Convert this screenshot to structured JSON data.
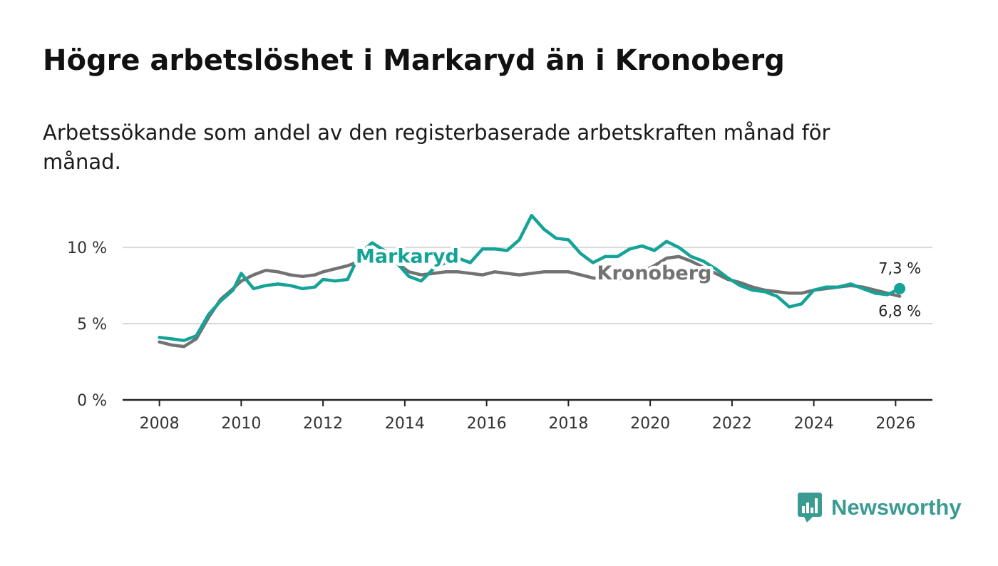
{
  "title": "Högre arbetslöshet i Markaryd än i Kronoberg",
  "subtitle": "Arbetssökande som andel av den registerbaserade arbetskraften månad för månad.",
  "brand": "Newsworthy",
  "colors": {
    "markaryd": "#14a396",
    "kronoberg": "#727272",
    "brand": "#3a9b93"
  },
  "chart_data": {
    "type": "line",
    "title": "Högre arbetslöshet i Markaryd än i Kronoberg",
    "xlabel": "",
    "ylabel": "",
    "xlim": [
      2007.1,
      2026.9
    ],
    "ylim": [
      0,
      10.8
    ],
    "xticks": [
      2008,
      2010,
      2012,
      2014,
      2016,
      2018,
      2020,
      2022,
      2024,
      2026
    ],
    "xtick_labels": [
      "2008",
      "2010",
      "2012",
      "2014",
      "2016",
      "2018",
      "2020",
      "2022",
      "2024",
      "2026"
    ],
    "yticks": [
      0,
      5,
      10
    ],
    "ytick_labels": [
      "0 %",
      "5 %",
      "10 %"
    ],
    "grid": true,
    "series": [
      {
        "name": "Kronoberg",
        "label": "Kronoberg",
        "end_label": "6,8 %",
        "x": [
          2008.0,
          2008.3,
          2008.6,
          2008.9,
          2009.2,
          2009.5,
          2009.8,
          2010.0,
          2010.3,
          2010.6,
          2010.9,
          2011.2,
          2011.5,
          2011.8,
          2012.0,
          2012.3,
          2012.6,
          2012.9,
          2013.2,
          2013.5,
          2013.8,
          2014.1,
          2014.4,
          2014.7,
          2015.0,
          2015.3,
          2015.6,
          2015.9,
          2016.2,
          2016.5,
          2016.8,
          2017.1,
          2017.4,
          2017.7,
          2018.0,
          2018.3,
          2018.6,
          2018.9,
          2019.2,
          2019.5,
          2019.8,
          2020.1,
          2020.4,
          2020.7,
          2021.0,
          2021.3,
          2021.6,
          2021.9,
          2022.2,
          2022.5,
          2022.8,
          2023.1,
          2023.4,
          2023.7,
          2024.0,
          2024.3,
          2024.6,
          2024.9,
          2025.2,
          2025.5,
          2025.8,
          2026.1
        ],
        "y": [
          3.8,
          3.6,
          3.5,
          4.0,
          5.4,
          6.6,
          7.3,
          7.8,
          8.2,
          8.5,
          8.4,
          8.2,
          8.1,
          8.2,
          8.4,
          8.6,
          8.8,
          9.1,
          9.4,
          9.3,
          9.0,
          8.4,
          8.2,
          8.3,
          8.4,
          8.4,
          8.3,
          8.2,
          8.4,
          8.3,
          8.2,
          8.3,
          8.4,
          8.4,
          8.4,
          8.2,
          8.0,
          7.9,
          7.9,
          8.1,
          8.4,
          8.8,
          9.3,
          9.4,
          9.1,
          8.7,
          8.3,
          7.9,
          7.7,
          7.4,
          7.2,
          7.1,
          7.0,
          7.0,
          7.2,
          7.3,
          7.4,
          7.5,
          7.4,
          7.2,
          7.0,
          6.8
        ]
      },
      {
        "name": "Markaryd",
        "label": "Markaryd",
        "end_label": "7,3 %",
        "x": [
          2008.0,
          2008.3,
          2008.6,
          2008.9,
          2009.2,
          2009.5,
          2009.8,
          2010.0,
          2010.3,
          2010.6,
          2010.9,
          2011.2,
          2011.5,
          2011.8,
          2012.0,
          2012.3,
          2012.6,
          2012.9,
          2013.2,
          2013.5,
          2013.8,
          2014.1,
          2014.4,
          2014.7,
          2015.0,
          2015.3,
          2015.6,
          2015.9,
          2016.2,
          2016.5,
          2016.8,
          2017.1,
          2017.4,
          2017.7,
          2018.0,
          2018.3,
          2018.6,
          2018.9,
          2019.2,
          2019.5,
          2019.8,
          2020.1,
          2020.4,
          2020.7,
          2021.0,
          2021.3,
          2021.6,
          2021.9,
          2022.2,
          2022.5,
          2022.8,
          2023.1,
          2023.4,
          2023.7,
          2024.0,
          2024.3,
          2024.6,
          2024.9,
          2025.2,
          2025.5,
          2025.8,
          2026.1
        ],
        "y": [
          4.1,
          4.0,
          3.9,
          4.2,
          5.6,
          6.5,
          7.2,
          8.3,
          7.3,
          7.5,
          7.6,
          7.5,
          7.3,
          7.4,
          7.9,
          7.8,
          7.9,
          9.6,
          10.3,
          9.8,
          9.0,
          8.1,
          7.8,
          8.6,
          9.0,
          9.3,
          9.0,
          9.9,
          9.9,
          9.8,
          10.5,
          12.1,
          11.2,
          10.6,
          10.5,
          9.6,
          9.0,
          9.4,
          9.4,
          9.9,
          10.1,
          9.8,
          10.4,
          10.0,
          9.4,
          9.1,
          8.6,
          8.0,
          7.5,
          7.2,
          7.1,
          6.8,
          6.1,
          6.3,
          7.2,
          7.4,
          7.4,
          7.6,
          7.3,
          7.0,
          6.9,
          7.3
        ]
      }
    ]
  }
}
